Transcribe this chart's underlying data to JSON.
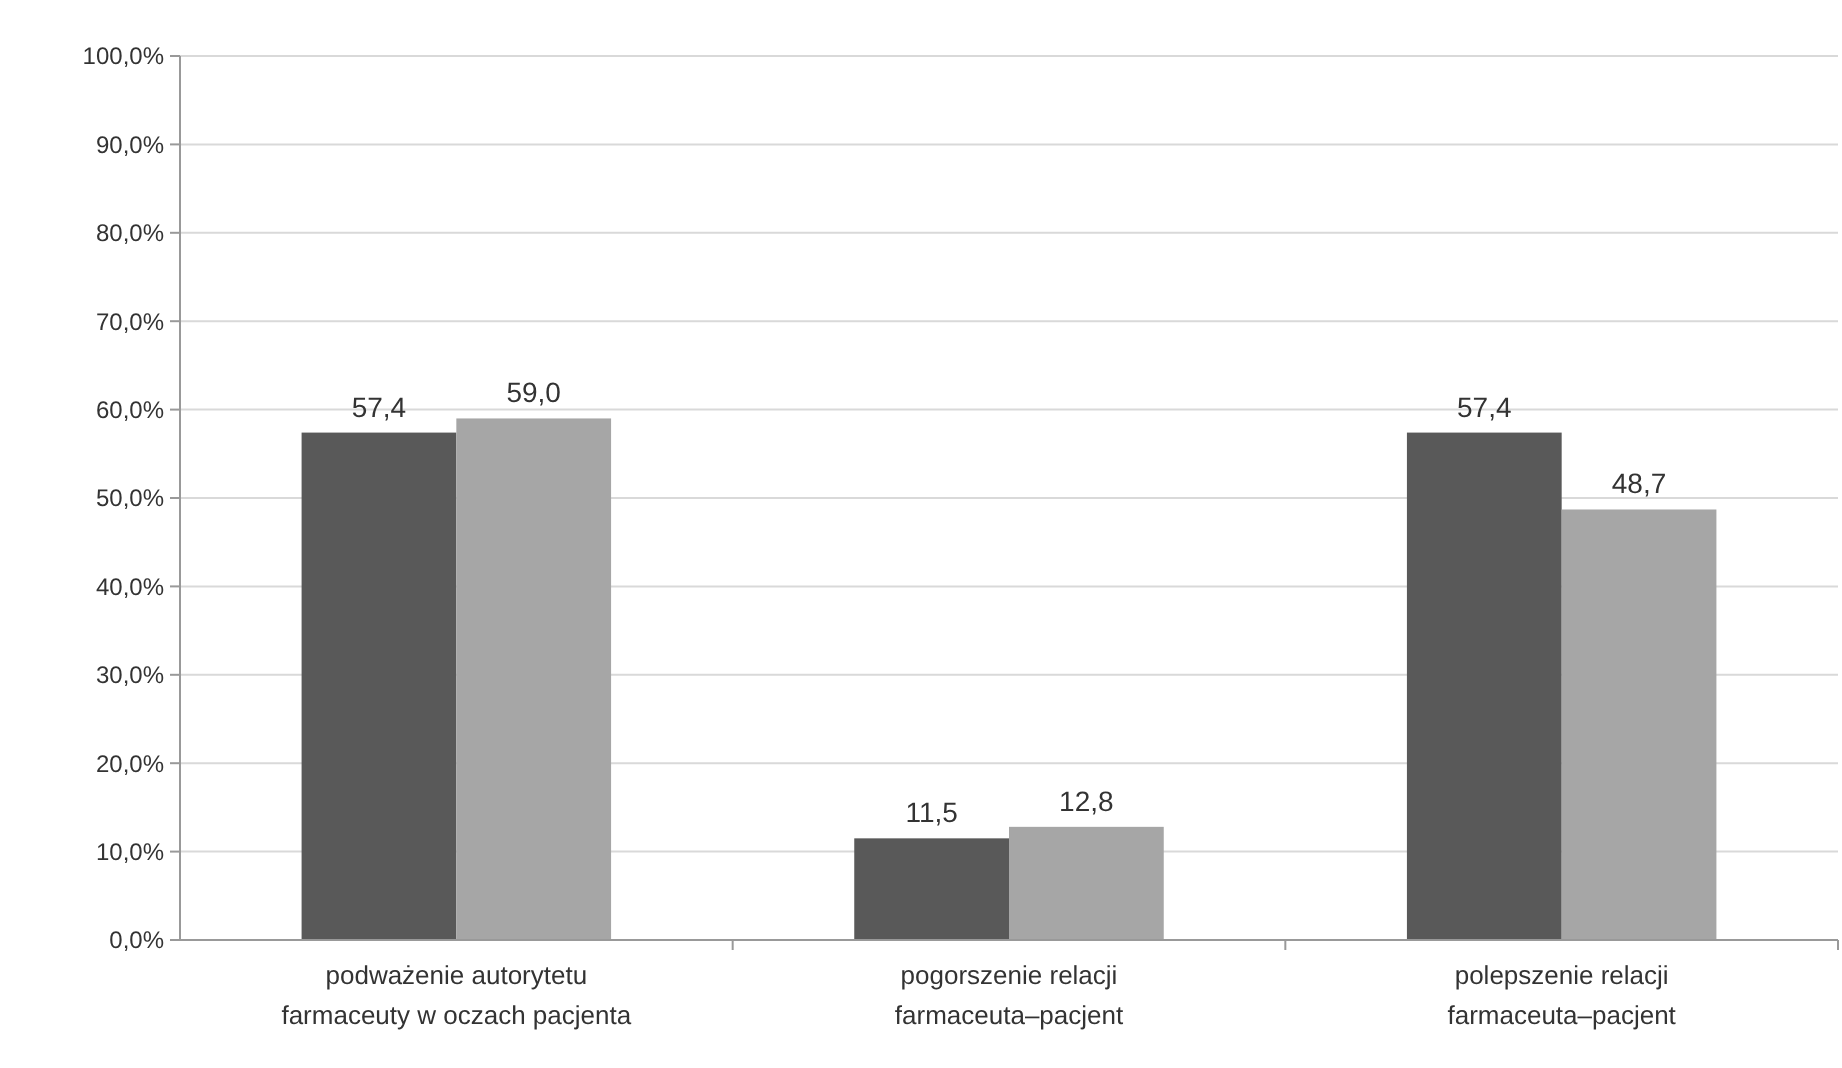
{
  "chart_data": {
    "type": "bar",
    "categories": [
      "podważenie autorytetu farmaceuty w oczach pacjenta",
      "pogorszenie relacji farmaceuta–pacjent",
      "polepszenie relacji farmaceuta–pacjent"
    ],
    "series": [
      {
        "color": "#595959",
        "values": [
          57.4,
          11.5,
          57.4
        ],
        "value_labels": [
          "57,4",
          "11,5",
          "57,4"
        ]
      },
      {
        "color": "#a6a6a6",
        "values": [
          59.0,
          12.8,
          48.7
        ],
        "value_labels": [
          "59,0",
          "12,8",
          "48,7"
        ]
      }
    ],
    "ylim": [
      0,
      100
    ],
    "yticks": [
      {
        "value": 0,
        "label": "0,0%"
      },
      {
        "value": 10,
        "label": "10,0%"
      },
      {
        "value": 20,
        "label": "20,0%"
      },
      {
        "value": 30,
        "label": "30,0%"
      },
      {
        "value": 40,
        "label": "40,0%"
      },
      {
        "value": 50,
        "label": "50,0%"
      },
      {
        "value": 60,
        "label": "60,0%"
      },
      {
        "value": 70,
        "label": "70,0%"
      },
      {
        "value": 80,
        "label": "80,0%"
      },
      {
        "value": 90,
        "label": "90,0%"
      },
      {
        "value": 100,
        "label": "100,0%"
      }
    ],
    "grid": "y"
  }
}
